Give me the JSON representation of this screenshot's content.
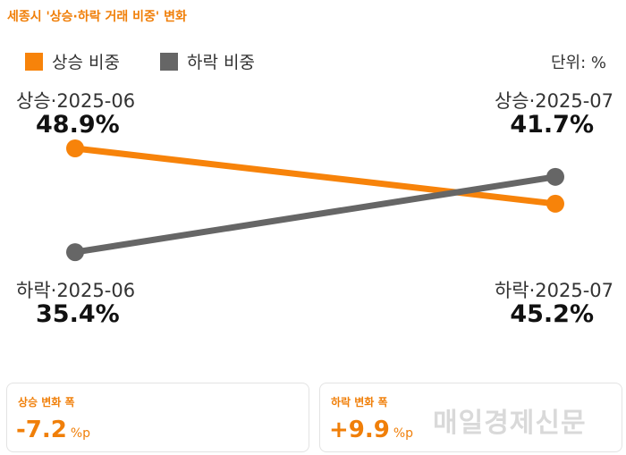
{
  "title": "세종시 '상승·하락 거래 비중' 변화",
  "unit_label": "단위: %",
  "colors": {
    "up": "#f7830a",
    "down": "#666666",
    "accent": "#f07f09"
  },
  "chart_data": {
    "type": "line",
    "x": [
      "2025-06",
      "2025-07"
    ],
    "series": [
      {
        "name": "상승 비중",
        "values": [
          48.9,
          41.7
        ],
        "color": "#f7830a",
        "labels": [
          {
            "head": "상승·2025-06",
            "value": "48.9%"
          },
          {
            "head": "상승·2025-07",
            "value": "41.7%"
          }
        ]
      },
      {
        "name": "하락 비중",
        "values": [
          35.4,
          45.2
        ],
        "color": "#666666",
        "labels": [
          {
            "head": "하락·2025-06",
            "value": "35.4%"
          },
          {
            "head": "하락·2025-07",
            "value": "45.2%"
          }
        ]
      }
    ],
    "unit": "%"
  },
  "cards": [
    {
      "label": "상승 변화 폭",
      "value": "-7.2",
      "unit": "%p"
    },
    {
      "label": "하락 변화 폭",
      "value": "+9.9",
      "unit": "%p"
    }
  ],
  "watermark": "매일경제신문"
}
